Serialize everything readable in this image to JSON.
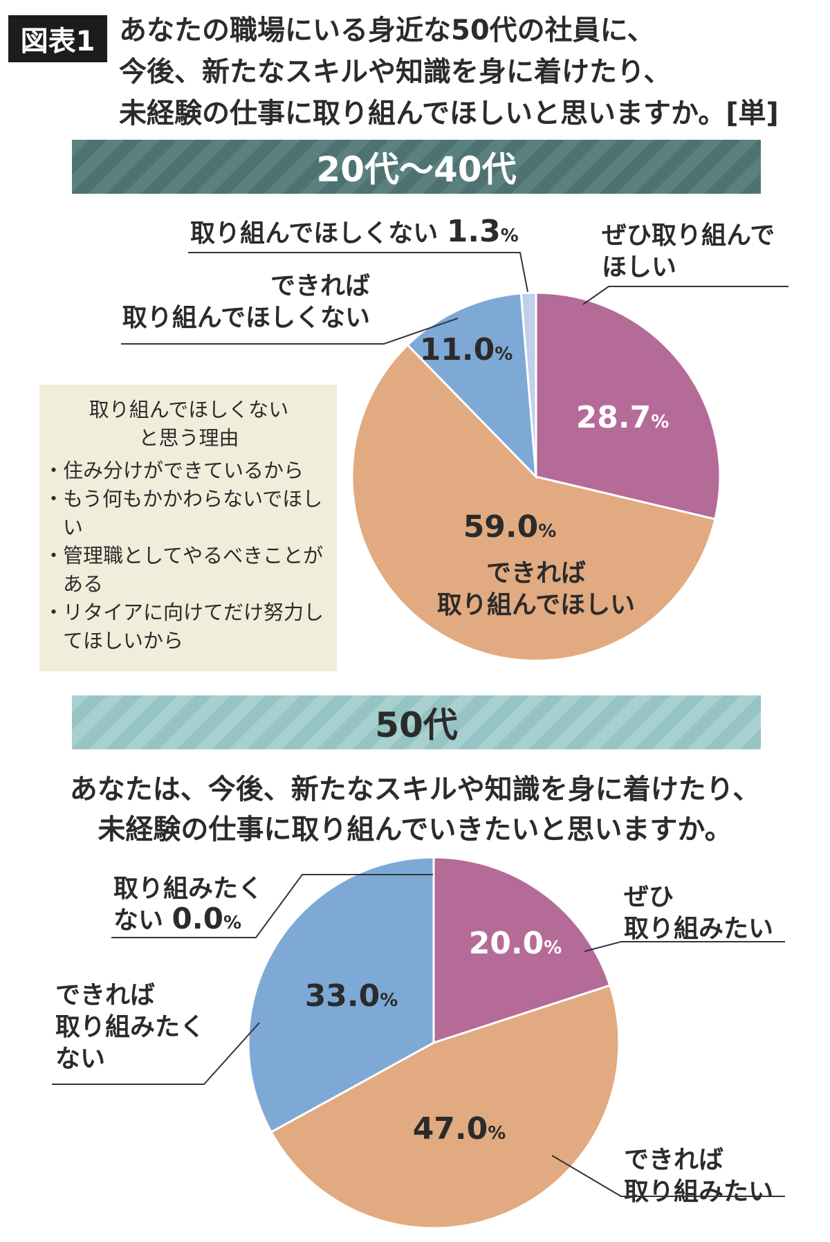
{
  "header": {
    "figure_tag": "図表1",
    "question_lines": [
      "あなたの職場にいる身近な50代の社員に、",
      "今後、新たなスキルや知識を身に着けたり、",
      "未経験の仕事に取り組んでほしいと思いますか。[単]"
    ]
  },
  "section1": {
    "band_title": "20代〜40代",
    "reason_box": {
      "title_lines": [
        "取り組んでほしくない",
        "と思う理由"
      ],
      "items": [
        "住み分けができているから",
        "もう何もかかわらないでほしい",
        "管理職としてやるべきことがある",
        "リタイアに向けてだけ努力してほしいから"
      ]
    }
  },
  "section2": {
    "band_title": "50代",
    "question_lines": [
      "あなたは、今後、新たなスキルや知識を身に着けたり、",
      "未経験の仕事に取り組んでいきたいと思いますか。"
    ]
  },
  "chart_data": [
    {
      "type": "pie",
      "series": [
        {
          "label_lines": [
            "ぜひ取り組んで",
            "ほしい"
          ],
          "value": 28.7,
          "value_text": "28.7",
          "color": "#b56b97"
        },
        {
          "label_lines": [
            "できれば",
            "取り組んでほしい"
          ],
          "value": 59.0,
          "value_text": "59.0",
          "color": "#e2aa80"
        },
        {
          "label_lines": [
            "できれば",
            "取り組んでほしくない"
          ],
          "value": 11.0,
          "value_text": "11.0",
          "color": "#7ea9d6"
        },
        {
          "label_lines": [
            "取り組んでほしくない"
          ],
          "value": 1.3,
          "value_text": "1.3",
          "color": "#bfd0e8"
        }
      ],
      "unit": "%"
    },
    {
      "type": "pie",
      "series": [
        {
          "label_lines": [
            "ぜひ",
            "取り組みたい"
          ],
          "value": 20.0,
          "value_text": "20.0",
          "color": "#b56b97"
        },
        {
          "label_lines": [
            "できれば",
            "取り組みたい"
          ],
          "value": 47.0,
          "value_text": "47.0",
          "color": "#e2aa80"
        },
        {
          "label_lines": [
            "できれば",
            "取り組みたく",
            "ない"
          ],
          "value": 33.0,
          "value_text": "33.0",
          "color": "#7ea9d6"
        },
        {
          "label_lines": [
            "取り組みたく",
            "ない"
          ],
          "value": 0.0,
          "value_text": "0.0",
          "color": "#bfd0e8"
        }
      ],
      "unit": "%"
    }
  ]
}
